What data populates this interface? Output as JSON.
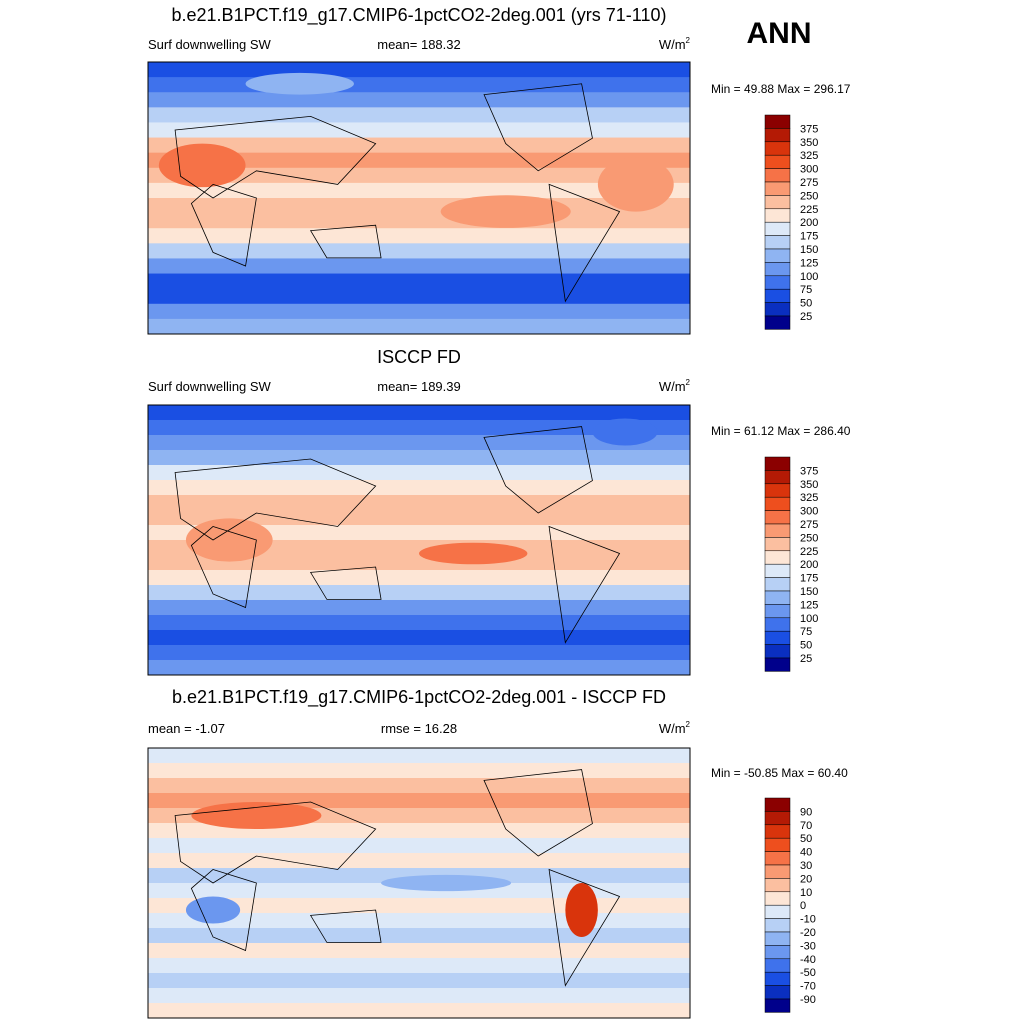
{
  "title": "ANN",
  "panels": [
    {
      "title": "b.e21.B1PCT.f19_g17.CMIP6-1pctCO2-2deg.001 (yrs 71-110)",
      "left_label": "Surf downwelling SW",
      "center_label": "mean= 188.32",
      "units": "W/m",
      "units_sup": "2",
      "minmax": "Min =  49.88 Max = 296.17",
      "colorbar": {
        "labels": [
          375,
          350,
          325,
          300,
          275,
          250,
          225,
          200,
          175,
          150,
          125,
          100,
          75,
          50,
          25
        ],
        "colors": [
          "#8b0000",
          "#b41a05",
          "#d9340c",
          "#ee4f1e",
          "#f67247",
          "#f99a73",
          "#fbbfa0",
          "#fde6d6",
          "#dde9f8",
          "#b7d0f5",
          "#8fb4f2",
          "#6b97ef",
          "#3f72ec",
          "#1a4fe3",
          "#0a2fc0",
          "#00008b"
        ]
      }
    },
    {
      "title": "ISCCP FD",
      "left_label": "Surf downwelling SW",
      "center_label": "mean= 189.39",
      "units": "W/m",
      "units_sup": "2",
      "minmax": "Min =  61.12 Max = 286.40",
      "colorbar": {
        "labels": [
          375,
          350,
          325,
          300,
          275,
          250,
          225,
          200,
          175,
          150,
          125,
          100,
          75,
          50,
          25
        ],
        "colors": [
          "#8b0000",
          "#b41a05",
          "#d9340c",
          "#ee4f1e",
          "#f67247",
          "#f99a73",
          "#fbbfa0",
          "#fde6d6",
          "#dde9f8",
          "#b7d0f5",
          "#8fb4f2",
          "#6b97ef",
          "#3f72ec",
          "#1a4fe3",
          "#0a2fc0",
          "#00008b"
        ]
      }
    },
    {
      "title": "b.e21.B1PCT.f19_g17.CMIP6-1pctCO2-2deg.001 - ISCCP FD",
      "left_label": "mean =  -1.07",
      "center_label": "rmse =  16.28",
      "units": "W/m",
      "units_sup": "2",
      "minmax": "Min = -50.85 Max =  60.40",
      "colorbar": {
        "labels": [
          90,
          70,
          50,
          40,
          30,
          20,
          10,
          0,
          -10,
          -20,
          -30,
          -40,
          -50,
          -70,
          -90
        ],
        "colors": [
          "#8b0000",
          "#b41a05",
          "#d9340c",
          "#ee4f1e",
          "#f67247",
          "#f99a73",
          "#fbbfa0",
          "#fde6d6",
          "#dde9f8",
          "#b7d0f5",
          "#8fb4f2",
          "#6b97ef",
          "#3f72ec",
          "#1a4fe3",
          "#0a2fc0",
          "#00008b"
        ]
      }
    }
  ]
}
